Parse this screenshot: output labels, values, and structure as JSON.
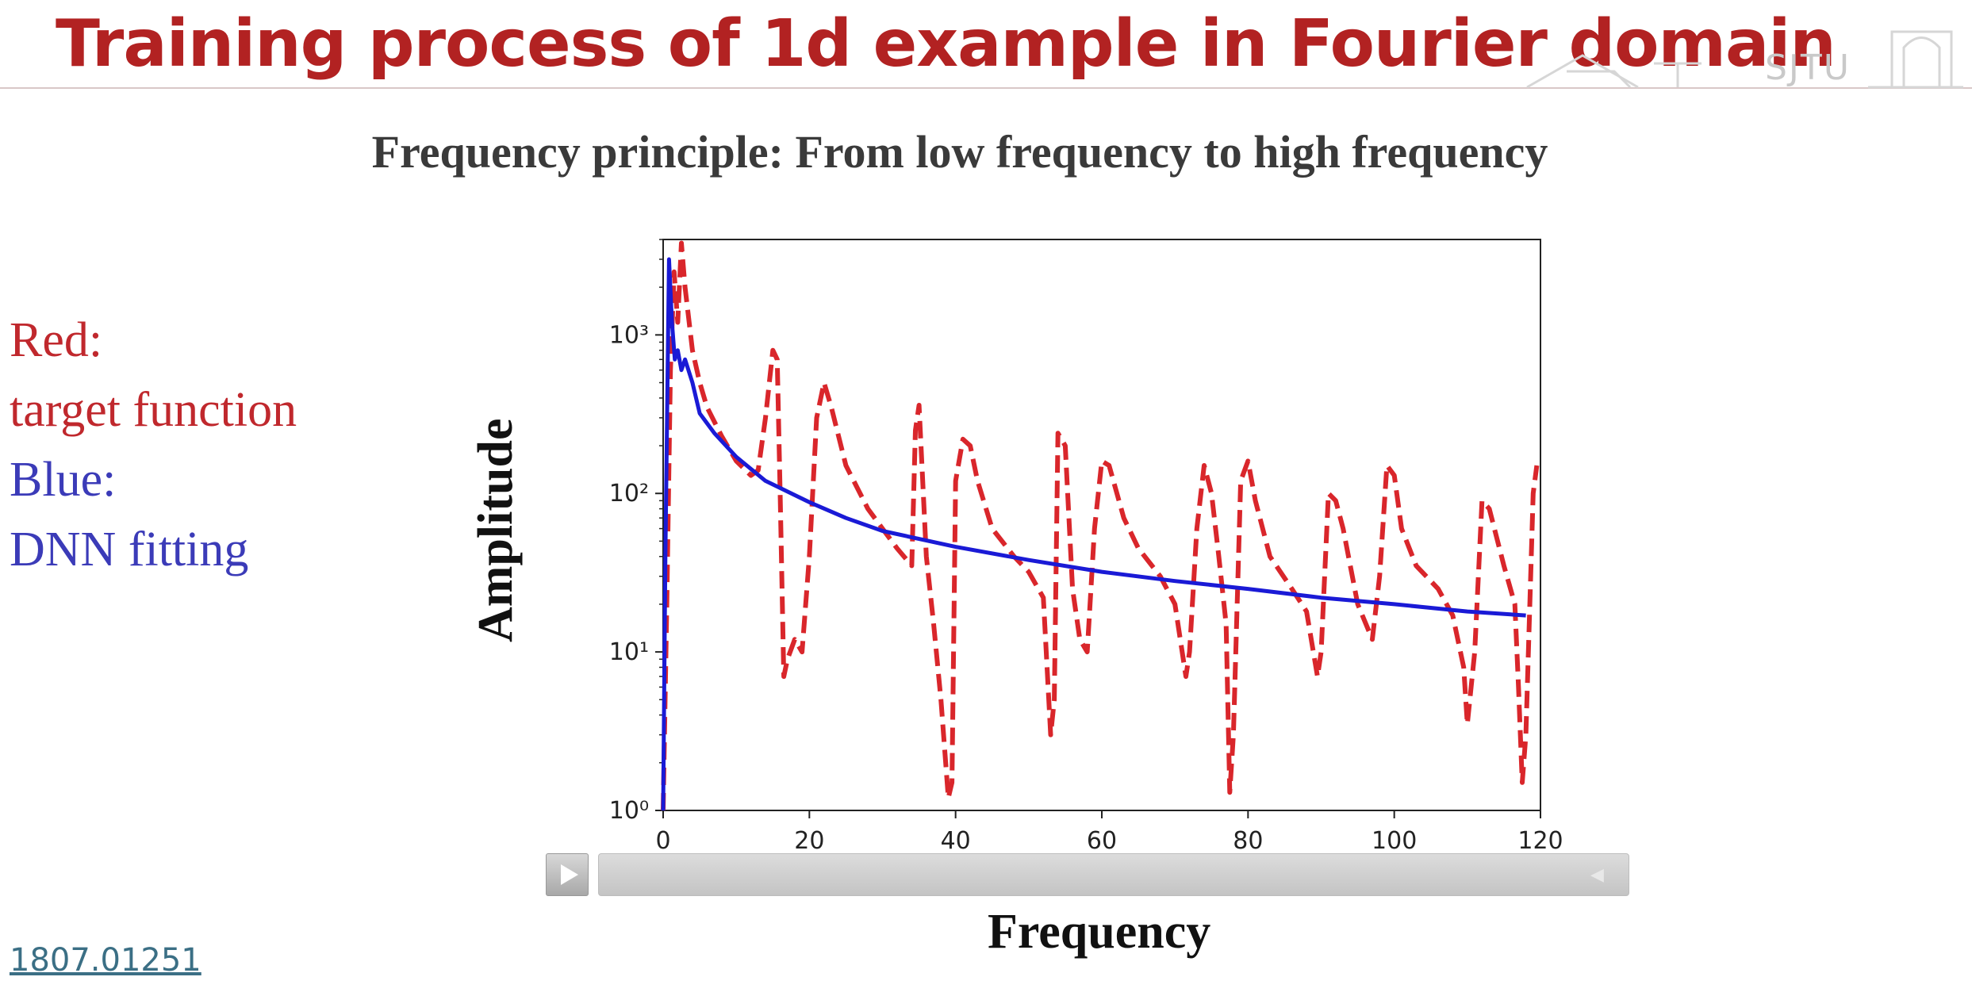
{
  "slide": {
    "title": "Training process of 1d example in Fourier domain",
    "logo_text": "SJTU",
    "subtitle": "Frequency principle: From low frequency to high frequency",
    "legend_lines": [
      "Red:",
      "target function",
      "Blue:",
      "DNN fitting"
    ],
    "reference": "1807.01251"
  },
  "colors": {
    "title": "#b22222",
    "target": "#d9262b",
    "dnn": "#1a1ad6",
    "legend_red": "#c0282d",
    "legend_blue": "#3b3bb8"
  },
  "player": {
    "play_icon": "play-icon",
    "volume_icon": "volume-icon"
  },
  "chart_data": {
    "type": "line",
    "title": "",
    "xlabel": "Frequency",
    "ylabel": "Amplitude",
    "xlim": [
      0,
      120
    ],
    "ylim": [
      1,
      4000
    ],
    "yscale": "log",
    "xticks": [
      "0",
      "20",
      "40",
      "60",
      "80",
      "100",
      "120"
    ],
    "yticks": [
      "10⁰",
      "10¹",
      "10²",
      "10³"
    ],
    "grid": false,
    "series": [
      {
        "name": "target function",
        "style": "dashed",
        "color": "#d9262b",
        "x": [
          0,
          0.5,
          1,
          1.5,
          2,
          2.5,
          3,
          4,
          5,
          6,
          8,
          10,
          12,
          13,
          14,
          15,
          15.6,
          16,
          16.5,
          17,
          18,
          19,
          20,
          21,
          22,
          23,
          25,
          28,
          30,
          32,
          34,
          34.5,
          35,
          36,
          37,
          38,
          39,
          39.5,
          40,
          41,
          42,
          43,
          45,
          48,
          50,
          52,
          53,
          53.5,
          54,
          55,
          56,
          57,
          58,
          59,
          60,
          61,
          63,
          65,
          68,
          70,
          71.5,
          72,
          73,
          74,
          75,
          76,
          77,
          77.5,
          78,
          79,
          80,
          81,
          83,
          86,
          88,
          89.5,
          90,
          91,
          92,
          93,
          95,
          97,
          98,
          99,
          100,
          101,
          103,
          106,
          108,
          109.5,
          110,
          111,
          112,
          113,
          115,
          116.5,
          117,
          117.5,
          118,
          119,
          119.5
        ],
        "y": [
          1,
          20,
          600,
          2500,
          1200,
          3800,
          2000,
          800,
          500,
          350,
          230,
          160,
          130,
          140,
          300,
          800,
          700,
          100,
          7,
          9,
          12,
          10,
          40,
          300,
          500,
          350,
          150,
          80,
          60,
          45,
          35,
          250,
          360,
          40,
          15,
          5,
          1.2,
          1.5,
          120,
          220,
          200,
          120,
          60,
          40,
          32,
          22,
          3,
          5,
          240,
          200,
          25,
          12,
          10,
          60,
          160,
          150,
          70,
          45,
          30,
          20,
          7,
          10,
          60,
          150,
          100,
          40,
          15,
          1.3,
          3,
          120,
          160,
          90,
          40,
          25,
          18,
          7,
          10,
          100,
          90,
          60,
          20,
          12,
          30,
          150,
          130,
          60,
          35,
          25,
          17,
          8,
          3.5,
          10,
          90,
          80,
          35,
          20,
          6,
          1.5,
          3,
          100,
          150
        ]
      },
      {
        "name": "DNN fitting",
        "style": "solid",
        "color": "#1a1ad6",
        "x": [
          0,
          0.3,
          0.8,
          1.2,
          1.6,
          2,
          2.5,
          3,
          4,
          5,
          7,
          10,
          14,
          20,
          25,
          30,
          40,
          50,
          60,
          70,
          80,
          90,
          100,
          110,
          118
        ],
        "y": [
          1,
          40,
          3000,
          1200,
          700,
          800,
          600,
          700,
          500,
          320,
          240,
          170,
          120,
          88,
          70,
          58,
          46,
          38,
          32,
          28,
          25,
          22,
          20,
          18,
          17
        ]
      }
    ]
  }
}
